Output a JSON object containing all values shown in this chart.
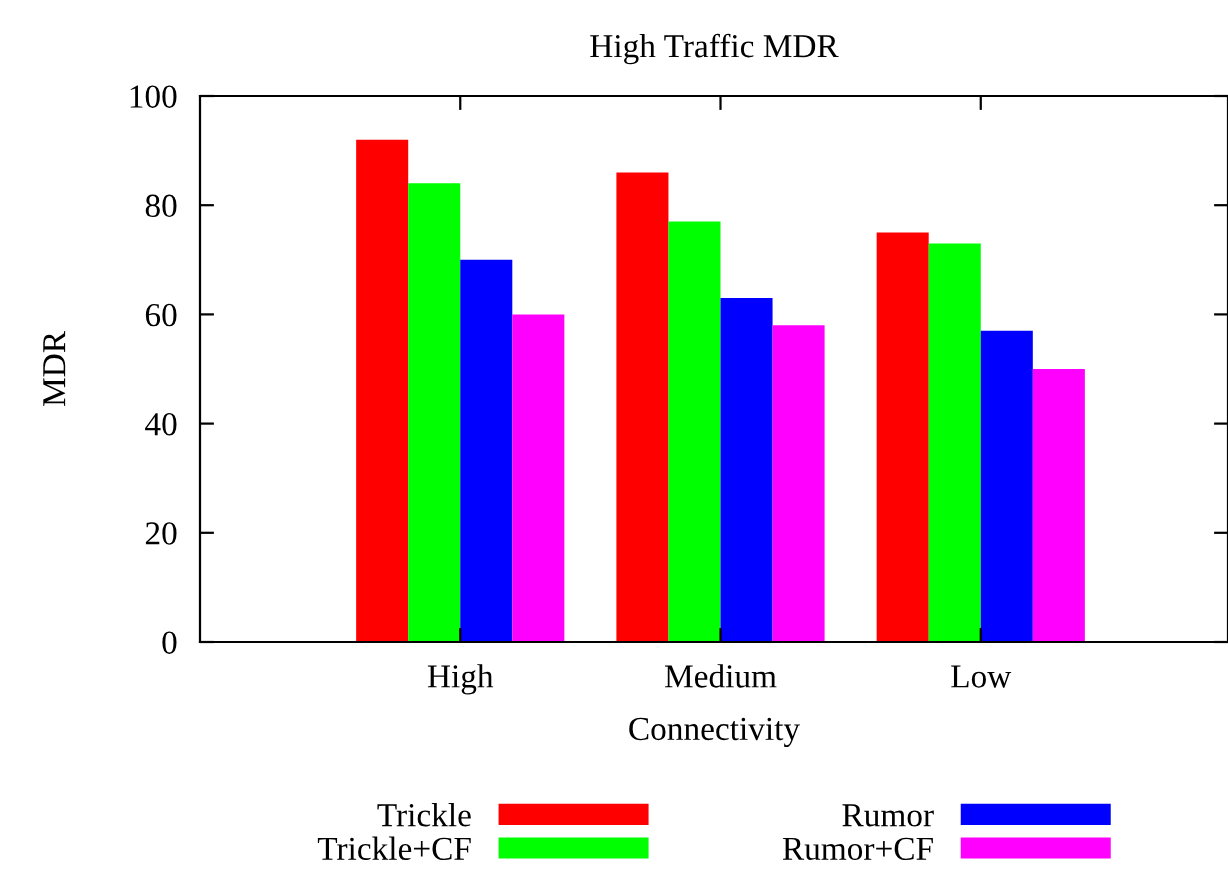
{
  "chart_data": {
    "type": "bar",
    "title": "High Traffic MDR",
    "xlabel": "Connectivity",
    "ylabel": "MDR",
    "categories": [
      "High",
      "Medium",
      "Low"
    ],
    "series": [
      {
        "name": "Trickle",
        "color": "#ff0000",
        "values": [
          92,
          86,
          75
        ]
      },
      {
        "name": "Trickle+CF",
        "color": "#00ff00",
        "values": [
          84,
          77,
          73
        ]
      },
      {
        "name": "Rumor",
        "color": "#0000ff",
        "values": [
          70,
          63,
          57
        ]
      },
      {
        "name": "Rumor+CF",
        "color": "#ff00ff",
        "values": [
          60,
          58,
          50
        ]
      }
    ],
    "ylim": [
      0,
      100
    ],
    "yticks": [
      0,
      20,
      40,
      60,
      80,
      100
    ],
    "grid": false,
    "legend": "bottom"
  }
}
